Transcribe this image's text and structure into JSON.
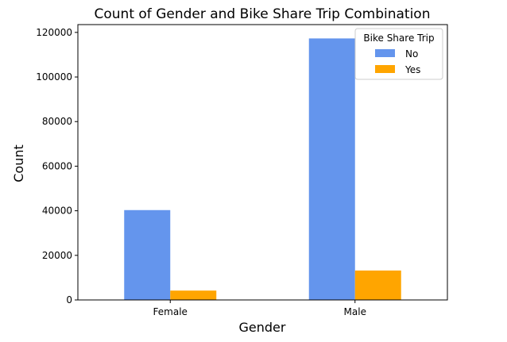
{
  "chart_data": {
    "type": "bar",
    "title": "Count of Gender and Bike Share Trip Combination",
    "xlabel": "Gender",
    "ylabel": "Count",
    "categories": [
      "Female",
      "Male"
    ],
    "series": [
      {
        "name": "No",
        "values": [
          40300,
          117300
        ],
        "color": "#6495ED"
      },
      {
        "name": "Yes",
        "values": [
          4200,
          13200
        ],
        "color": "#FFA500"
      }
    ],
    "ylim": [
      0,
      123500
    ],
    "yticks": [
      0,
      20000,
      40000,
      60000,
      80000,
      100000,
      120000
    ],
    "legend": {
      "title": "Bike Share Trip",
      "placement": "top-right"
    },
    "grid": false
  }
}
